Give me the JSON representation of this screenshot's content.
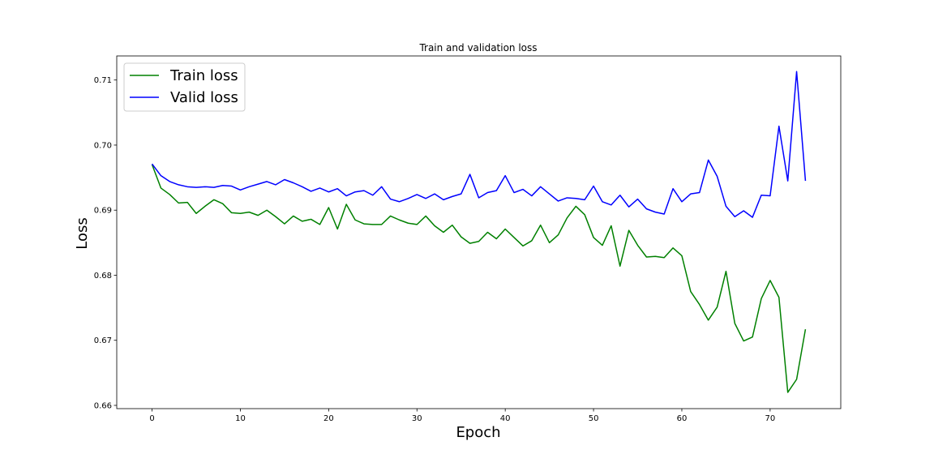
{
  "chart_data": {
    "type": "line",
    "title": "Train and validation loss",
    "xlabel": "Epoch",
    "ylabel": "Loss",
    "xlim": [
      -4,
      78
    ],
    "ylim": [
      0.6595,
      0.7137
    ],
    "xticks": [
      0,
      10,
      20,
      30,
      40,
      50,
      60,
      70
    ],
    "yticks": [
      0.66,
      0.67,
      0.68,
      0.69,
      0.7,
      0.71
    ],
    "ytick_labels": [
      "0.66",
      "0.67",
      "0.68",
      "0.69",
      "0.70",
      "0.71"
    ],
    "legend": {
      "placement": "upper-left"
    },
    "grid": false,
    "series": [
      {
        "name": "Train loss",
        "color": "#008000",
        "values": [
          0.697,
          0.6934,
          0.6924,
          0.6911,
          0.6912,
          0.6895,
          0.6906,
          0.6916,
          0.691,
          0.6896,
          0.6895,
          0.6897,
          0.6892,
          0.69,
          0.689,
          0.6879,
          0.6891,
          0.6883,
          0.6886,
          0.6878,
          0.6904,
          0.6871,
          0.6909,
          0.6885,
          0.6879,
          0.6878,
          0.6878,
          0.6891,
          0.6885,
          0.688,
          0.6878,
          0.6891,
          0.6876,
          0.6866,
          0.6877,
          0.6859,
          0.6849,
          0.6852,
          0.6866,
          0.6856,
          0.6871,
          0.6858,
          0.6845,
          0.6853,
          0.6877,
          0.685,
          0.6862,
          0.6888,
          0.6906,
          0.6893,
          0.6858,
          0.6846,
          0.6876,
          0.6814,
          0.6869,
          0.6846,
          0.6828,
          0.6829,
          0.6827,
          0.6842,
          0.683,
          0.6775,
          0.6755,
          0.6731,
          0.6751,
          0.6806,
          0.6726,
          0.6699,
          0.6705,
          0.6764,
          0.6792,
          0.6766,
          0.662,
          0.664,
          0.6717
        ]
      },
      {
        "name": "Valid loss",
        "color": "#0000ff",
        "values": [
          0.6971,
          0.6953,
          0.6944,
          0.6939,
          0.6936,
          0.6935,
          0.6936,
          0.6935,
          0.6938,
          0.6937,
          0.6931,
          0.6936,
          0.694,
          0.6944,
          0.6939,
          0.6947,
          0.6942,
          0.6936,
          0.6929,
          0.6934,
          0.6928,
          0.6933,
          0.6922,
          0.6928,
          0.693,
          0.6923,
          0.6936,
          0.6917,
          0.6913,
          0.6918,
          0.6924,
          0.6918,
          0.6925,
          0.6916,
          0.6921,
          0.6925,
          0.6955,
          0.6919,
          0.6927,
          0.693,
          0.6953,
          0.6927,
          0.6932,
          0.6922,
          0.6936,
          0.6925,
          0.6914,
          0.6919,
          0.6918,
          0.6916,
          0.6937,
          0.6913,
          0.6908,
          0.6923,
          0.6905,
          0.6917,
          0.6902,
          0.6897,
          0.6894,
          0.6933,
          0.6913,
          0.6925,
          0.6927,
          0.6977,
          0.6952,
          0.6906,
          0.689,
          0.6899,
          0.6889,
          0.6923,
          0.6922,
          0.7029,
          0.6945,
          0.7113,
          0.6945
        ]
      }
    ]
  }
}
